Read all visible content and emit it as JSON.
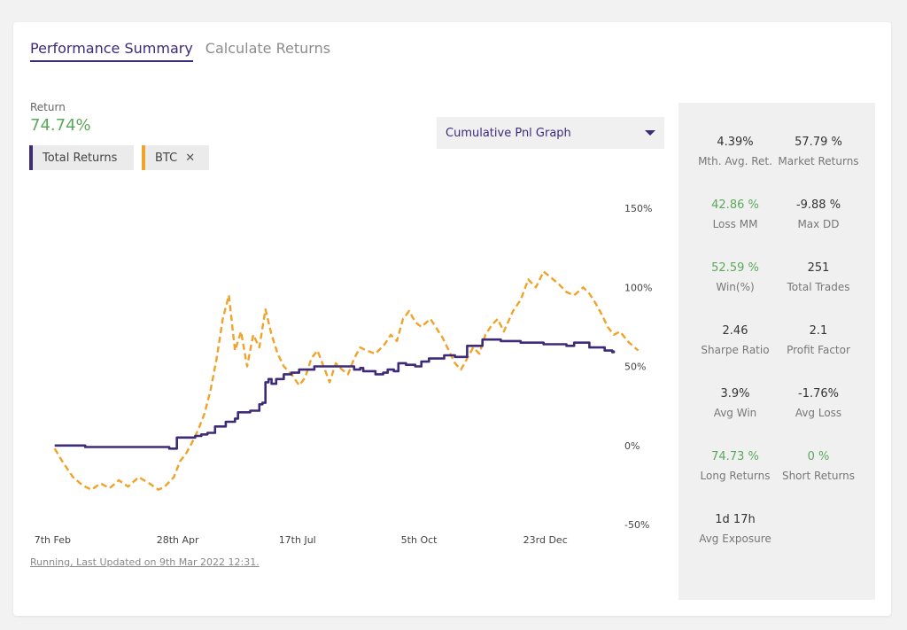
{
  "tabs": [
    {
      "label": "Performance Summary",
      "active": true
    },
    {
      "label": "Calculate Returns",
      "active": false
    }
  ],
  "return_label": "Return",
  "return_value": "74.74%",
  "legend_chips": [
    {
      "label": "Total Returns",
      "color": "#3d2a78"
    },
    {
      "label": "BTC",
      "color": "#f0a32a",
      "close": "✕"
    }
  ],
  "graph_select": {
    "selected": "Cumulative Pnl Graph"
  },
  "footer_status": "Running, Last Updated on 9th Mar 2022 12:31.",
  "colors": {
    "accent": "#3d2a78",
    "btc": "#f0a32a",
    "positive": "#5aa95a"
  },
  "stats": [
    {
      "value": "4.39%",
      "label": "Mth. Avg. Ret.",
      "green": false
    },
    {
      "value": "57.79 %",
      "label": "Market Returns",
      "green": false
    },
    {
      "value": "42.86 %",
      "label": "Loss MM",
      "green": true
    },
    {
      "value": "-9.88 %",
      "label": "Max DD",
      "green": false
    },
    {
      "value": "52.59 %",
      "label": "Win(%)",
      "green": true
    },
    {
      "value": "251",
      "label": "Total Trades",
      "green": false
    },
    {
      "value": "2.46",
      "label": "Sharpe Ratio",
      "green": false
    },
    {
      "value": "2.1",
      "label": "Profit Factor",
      "green": false
    },
    {
      "value": "3.9%",
      "label": "Avg Win",
      "green": false
    },
    {
      "value": "-1.76%",
      "label": "Avg Loss",
      "green": false
    },
    {
      "value": "74.73 %",
      "label": "Long Returns",
      "green": true
    },
    {
      "value": "0 %",
      "label": "Short Returns",
      "green": true
    },
    {
      "value": "1d 17h",
      "label": "Avg Exposure",
      "green": false
    }
  ],
  "chart_data": {
    "type": "line",
    "y_ticks": [
      "150%",
      "100%",
      "50%",
      "0%",
      "-50%"
    ],
    "ylim": [
      -50,
      150
    ],
    "x_tick_labels": [
      "7th Feb",
      "28th Apr",
      "17th Jul",
      "5th Oct",
      "23rd Dec"
    ],
    "x_tick_positions": [
      0,
      80,
      160,
      240,
      320
    ],
    "xlim": [
      -1,
      366
    ],
    "grid": false,
    "series": [
      {
        "name": "Total Returns",
        "color": "#3d2a78",
        "style": "solid",
        "points": [
          [
            0,
            0
          ],
          [
            20,
            -1
          ],
          [
            45,
            -1
          ],
          [
            60,
            -1
          ],
          [
            75,
            -2
          ],
          [
            78,
            -2
          ],
          [
            80,
            5
          ],
          [
            92,
            6
          ],
          [
            96,
            7
          ],
          [
            100,
            8
          ],
          [
            105,
            12
          ],
          [
            112,
            15
          ],
          [
            118,
            17
          ],
          [
            120,
            21
          ],
          [
            128,
            22
          ],
          [
            130,
            22
          ],
          [
            134,
            26
          ],
          [
            136,
            27
          ],
          [
            138,
            40
          ],
          [
            140,
            42
          ],
          [
            142,
            39
          ],
          [
            145,
            42
          ],
          [
            150,
            45
          ],
          [
            155,
            46
          ],
          [
            160,
            48
          ],
          [
            170,
            50
          ],
          [
            180,
            50
          ],
          [
            195,
            50
          ],
          [
            196,
            48
          ],
          [
            200,
            49
          ],
          [
            202,
            47
          ],
          [
            210,
            45
          ],
          [
            215,
            46
          ],
          [
            218,
            48
          ],
          [
            222,
            47
          ],
          [
            225,
            52
          ],
          [
            230,
            51
          ],
          [
            236,
            50
          ],
          [
            240,
            53
          ],
          [
            245,
            55
          ],
          [
            255,
            57
          ],
          [
            262,
            56
          ],
          [
            270,
            63
          ],
          [
            280,
            67
          ],
          [
            292,
            66
          ],
          [
            305,
            65
          ],
          [
            320,
            64
          ],
          [
            335,
            63
          ],
          [
            340,
            65
          ],
          [
            350,
            62
          ],
          [
            360,
            60
          ],
          [
            365,
            59
          ],
          [
            366,
            60
          ]
        ]
      },
      {
        "name": "BTC",
        "color": "#f0a32a",
        "style": "dashed",
        "points": [
          [
            0,
            -2
          ],
          [
            5,
            -10
          ],
          [
            12,
            -20
          ],
          [
            18,
            -25
          ],
          [
            24,
            -28
          ],
          [
            30,
            -24
          ],
          [
            36,
            -27
          ],
          [
            42,
            -22
          ],
          [
            48,
            -26
          ],
          [
            55,
            -20
          ],
          [
            62,
            -24
          ],
          [
            68,
            -28
          ],
          [
            72,
            -26
          ],
          [
            78,
            -20
          ],
          [
            82,
            -10
          ],
          [
            86,
            -5
          ],
          [
            90,
            2
          ],
          [
            94,
            10
          ],
          [
            98,
            20
          ],
          [
            102,
            35
          ],
          [
            106,
            55
          ],
          [
            110,
            80
          ],
          [
            114,
            95
          ],
          [
            118,
            60
          ],
          [
            122,
            72
          ],
          [
            126,
            50
          ],
          [
            130,
            70
          ],
          [
            134,
            62
          ],
          [
            138,
            86
          ],
          [
            142,
            70
          ],
          [
            146,
            58
          ],
          [
            150,
            50
          ],
          [
            155,
            45
          ],
          [
            160,
            38
          ],
          [
            164,
            43
          ],
          [
            168,
            55
          ],
          [
            172,
            60
          ],
          [
            176,
            50
          ],
          [
            180,
            40
          ],
          [
            184,
            52
          ],
          [
            188,
            48
          ],
          [
            192,
            45
          ],
          [
            196,
            55
          ],
          [
            200,
            62
          ],
          [
            204,
            60
          ],
          [
            210,
            58
          ],
          [
            216,
            64
          ],
          [
            220,
            70
          ],
          [
            224,
            66
          ],
          [
            228,
            80
          ],
          [
            232,
            85
          ],
          [
            236,
            78
          ],
          [
            240,
            75
          ],
          [
            246,
            80
          ],
          [
            250,
            74
          ],
          [
            254,
            68
          ],
          [
            258,
            60
          ],
          [
            262,
            52
          ],
          [
            266,
            48
          ],
          [
            270,
            55
          ],
          [
            274,
            62
          ],
          [
            278,
            58
          ],
          [
            282,
            70
          ],
          [
            286,
            76
          ],
          [
            290,
            80
          ],
          [
            294,
            72
          ],
          [
            300,
            85
          ],
          [
            305,
            92
          ],
          [
            310,
            105
          ],
          [
            315,
            100
          ],
          [
            320,
            110
          ],
          [
            325,
            106
          ],
          [
            330,
            102
          ],
          [
            335,
            97
          ],
          [
            340,
            95
          ],
          [
            346,
            100
          ],
          [
            350,
            96
          ],
          [
            354,
            90
          ],
          [
            358,
            83
          ],
          [
            362,
            75
          ],
          [
            366,
            70
          ],
          [
            370,
            72
          ],
          [
            376,
            65
          ],
          [
            382,
            60
          ]
        ]
      }
    ]
  }
}
